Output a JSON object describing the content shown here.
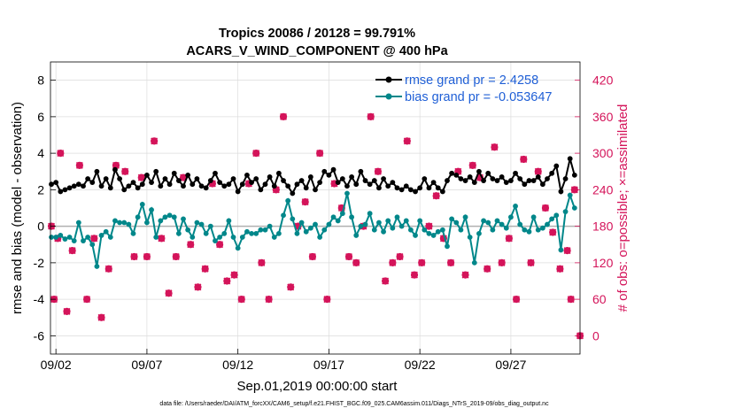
{
  "chart_data": {
    "type": "line",
    "title": "Tropics 20086 / 20128 = 99.791%",
    "subtitle": "ACARS_V_WIND_COMPONENT @ 400 hPa",
    "xlabel": "Sep.01,2019 00:00:00 start",
    "ylabel": "rmse and bias (model - observation)",
    "y2label": "# of obs: o=possible; ×=assimilated",
    "footer": "data file: /Users/raeder/DAI/ATM_forcXX/CAM6_setup/f.e21.FHIST_BGC.f09_025.CAM6assim.011/Diags_NTrS_2019-09/obs_diag_output.nc",
    "xlim": [
      1.7,
      30.8
    ],
    "ylim": [
      -7,
      9
    ],
    "y2lim": [
      -30,
      450
    ],
    "x_ticks": [
      2,
      7,
      12,
      17,
      22,
      27
    ],
    "x_tick_labels": [
      "09/02",
      "09/07",
      "09/12",
      "09/17",
      "09/22",
      "09/27"
    ],
    "y_ticks": [
      -6,
      -4,
      -2,
      0,
      2,
      4,
      6,
      8
    ],
    "y_tick_labels": [
      "-6",
      "-4",
      "-2",
      "0",
      "2",
      "4",
      "6",
      "8"
    ],
    "y2_ticks": [
      0,
      60,
      120,
      180,
      240,
      300,
      360,
      420
    ],
    "y2_tick_labels": [
      "0",
      "60",
      "120",
      "180",
      "240",
      "300",
      "360",
      "420"
    ],
    "grid": true,
    "legend_position": "top-right",
    "colors": {
      "rmse": "#000000",
      "bias": "#00878a",
      "obs": "#d4145a",
      "legend_text": "#1f5fd6",
      "zero_line": "#b0b0b0",
      "grid": "#dcdcdc"
    },
    "series": [
      {
        "name": "rmse",
        "label": "rmse grand pr = 2.4258",
        "x": [
          1.75,
          2,
          2.25,
          2.5,
          2.75,
          3,
          3.25,
          3.5,
          3.75,
          4,
          4.25,
          4.5,
          4.75,
          5,
          5.25,
          5.5,
          5.75,
          6,
          6.25,
          6.5,
          6.75,
          7,
          7.25,
          7.5,
          7.75,
          8,
          8.25,
          8.5,
          8.75,
          9,
          9.25,
          9.5,
          9.75,
          10,
          10.25,
          10.5,
          10.75,
          11,
          11.25,
          11.5,
          11.75,
          12,
          12.25,
          12.5,
          12.75,
          13,
          13.25,
          13.5,
          13.75,
          14,
          14.25,
          14.5,
          14.75,
          15,
          15.25,
          15.5,
          15.75,
          16,
          16.25,
          16.5,
          16.75,
          17,
          17.25,
          17.5,
          17.75,
          18,
          18.25,
          18.5,
          18.75,
          19,
          19.25,
          19.5,
          19.75,
          20,
          20.25,
          20.5,
          20.75,
          21,
          21.25,
          21.5,
          21.75,
          22,
          22.25,
          22.5,
          22.75,
          23,
          23.25,
          23.5,
          23.75,
          24,
          24.25,
          24.5,
          24.75,
          25,
          25.25,
          25.5,
          25.75,
          26,
          26.25,
          26.5,
          26.75,
          27,
          27.25,
          27.5,
          27.75,
          28,
          28.25,
          28.5,
          28.75,
          29,
          29.25,
          29.5,
          29.75,
          30,
          30.25,
          30.5
        ],
        "values": [
          2.3,
          2.4,
          1.9,
          2.0,
          2.1,
          2.2,
          2.3,
          2.2,
          2.6,
          2.4,
          3.0,
          2.2,
          2.6,
          2.1,
          3.1,
          2.6,
          2.0,
          2.2,
          2.4,
          2.1,
          2.3,
          2.8,
          2.4,
          3.0,
          2.2,
          2.6,
          2.3,
          2.9,
          2.5,
          2.2,
          2.8,
          2.3,
          2.6,
          2.2,
          2.1,
          2.5,
          2.9,
          2.4,
          2.2,
          2.3,
          2.6,
          1.9,
          2.3,
          2.8,
          2.4,
          2.6,
          2.0,
          2.3,
          2.7,
          2.2,
          2.9,
          2.5,
          2.2,
          1.8,
          2.3,
          2.5,
          2.1,
          2.7,
          2.0,
          2.4,
          3.0,
          2.8,
          3.1,
          2.4,
          2.6,
          2.2,
          2.7,
          2.3,
          3.0,
          2.5,
          2.3,
          2.5,
          2.1,
          2.6,
          2.2,
          2.4,
          2.1,
          2.0,
          2.2,
          2.0,
          1.9,
          2.1,
          2.6,
          2.1,
          2.4,
          2.1,
          1.9,
          2.5,
          2.9,
          2.8,
          2.6,
          2.5,
          2.7,
          2.4,
          3.0,
          2.5,
          2.9,
          2.6,
          2.5,
          2.7,
          2.4,
          2.5,
          2.9,
          2.6,
          2.3,
          2.5,
          2.5,
          2.7,
          2.3,
          2.6,
          2.9,
          3.3,
          1.9,
          2.6,
          3.7,
          2.8
        ]
      },
      {
        "name": "bias",
        "label": "bias grand pr = -0.053647",
        "x": [
          1.75,
          2,
          2.25,
          2.5,
          2.75,
          3,
          3.25,
          3.5,
          3.75,
          4,
          4.25,
          4.5,
          4.75,
          5,
          5.25,
          5.5,
          5.75,
          6,
          6.25,
          6.5,
          6.75,
          7,
          7.25,
          7.5,
          7.75,
          8,
          8.25,
          8.5,
          8.75,
          9,
          9.25,
          9.5,
          9.75,
          10,
          10.25,
          10.5,
          10.75,
          11,
          11.25,
          11.5,
          11.75,
          12,
          12.25,
          12.5,
          12.75,
          13,
          13.25,
          13.5,
          13.75,
          14,
          14.25,
          14.5,
          14.75,
          15,
          15.25,
          15.5,
          15.75,
          16,
          16.25,
          16.5,
          16.75,
          17,
          17.25,
          17.5,
          17.75,
          18,
          18.25,
          18.5,
          18.75,
          19,
          19.25,
          19.5,
          19.75,
          20,
          20.25,
          20.5,
          20.75,
          21,
          21.25,
          21.5,
          21.75,
          22,
          22.25,
          22.5,
          22.75,
          23,
          23.25,
          23.5,
          23.75,
          24,
          24.25,
          24.5,
          24.75,
          25,
          25.25,
          25.5,
          25.75,
          26,
          26.25,
          26.5,
          26.75,
          27,
          27.25,
          27.5,
          27.75,
          28,
          28.25,
          28.5,
          28.75,
          29,
          29.25,
          29.5,
          29.75,
          30,
          30.25,
          30.5
        ],
        "values": [
          -0.6,
          -0.6,
          -0.5,
          -0.7,
          -0.6,
          -0.8,
          0.2,
          -0.8,
          -0.6,
          -1.0,
          -2.2,
          -0.5,
          -0.3,
          -0.6,
          0.3,
          0.2,
          0.2,
          0.1,
          -0.4,
          0.5,
          1.2,
          0.2,
          0.9,
          -0.6,
          0.3,
          0.5,
          0.6,
          0.5,
          -0.4,
          0.4,
          -0.2,
          -0.6,
          0.2,
          0.1,
          -0.4,
          0.0,
          -0.8,
          -0.6,
          -0.4,
          0.3,
          -0.6,
          -1.2,
          -0.6,
          -0.3,
          -0.4,
          -0.4,
          -0.2,
          -0.2,
          0.0,
          -0.6,
          -0.4,
          0.6,
          1.4,
          0.4,
          -0.4,
          0.2,
          -0.3,
          -0.1,
          0.1,
          -0.6,
          -0.2,
          0.1,
          0.5,
          0.3,
          0.7,
          1.8,
          0.5,
          -0.5,
          0.0,
          0.1,
          0.7,
          -0.2,
          0.2,
          -0.3,
          0.3,
          -0.1,
          0.5,
          0.0,
          0.3,
          -0.2,
          -0.5,
          0.3,
          -0.2,
          -0.4,
          -0.5,
          -0.3,
          -0.2,
          -1.1,
          0.4,
          0.2,
          -0.2,
          0.5,
          -0.6,
          -2.0,
          -0.4,
          0.3,
          0.2,
          -0.2,
          0.3,
          0.1,
          -0.1,
          0.5,
          1.1,
          0.1,
          -0.2,
          -0.3,
          0.5,
          -0.2,
          -0.1,
          0.1,
          0.4,
          0.6,
          -1.3,
          0.8,
          1.7,
          1.0
        ]
      }
    ],
    "obs_possible": {
      "x": [
        1.75,
        1.9,
        2.1,
        2.25,
        2.6,
        2.9,
        3.3,
        3.7,
        4.1,
        4.5,
        4.9,
        5.3,
        5.8,
        6.3,
        6.7,
        7.0,
        7.4,
        7.8,
        8.2,
        8.6,
        9.0,
        9.4,
        9.8,
        10.2,
        10.6,
        11.0,
        11.4,
        11.8,
        12.2,
        12.6,
        13.0,
        13.3,
        13.7,
        14.1,
        14.5,
        14.9,
        15.3,
        15.7,
        16.1,
        16.5,
        16.9,
        17.3,
        17.7,
        18.1,
        18.5,
        18.9,
        19.3,
        19.7,
        20.1,
        20.5,
        20.9,
        21.3,
        21.7,
        22.1,
        22.5,
        22.9,
        23.3,
        23.7,
        24.1,
        24.5,
        24.9,
        25.3,
        25.7,
        26.1,
        26.5,
        26.9,
        27.3,
        27.7,
        28.1,
        28.5,
        28.9,
        29.3,
        29.7,
        30.1,
        30.3,
        30.5,
        30.8
      ],
      "values": [
        180,
        60,
        160,
        300,
        40,
        140,
        280,
        60,
        160,
        30,
        110,
        280,
        270,
        130,
        260,
        130,
        320,
        160,
        70,
        130,
        260,
        150,
        80,
        110,
        250,
        150,
        90,
        100,
        60,
        250,
        300,
        120,
        60,
        240,
        360,
        80,
        180,
        220,
        130,
        300,
        60,
        250,
        210,
        130,
        120,
        180,
        360,
        270,
        90,
        120,
        130,
        320,
        100,
        120,
        180,
        230,
        160,
        120,
        270,
        100,
        280,
        260,
        110,
        310,
        120,
        160,
        60,
        290,
        120,
        270,
        210,
        170,
        110,
        140,
        60,
        240,
        0
      ]
    },
    "obs_assimilated": {
      "x": [
        1.75,
        1.9,
        2.1,
        2.25,
        2.6,
        2.9,
        3.3,
        3.7,
        4.1,
        4.5,
        4.9,
        5.3,
        5.8,
        6.3,
        6.7,
        7.0,
        7.4,
        7.8,
        8.2,
        8.6,
        9.0,
        9.4,
        9.8,
        10.2,
        10.6,
        11.0,
        11.4,
        11.8,
        12.2,
        12.6,
        13.0,
        13.3,
        13.7,
        14.1,
        14.5,
        14.9,
        15.3,
        15.7,
        16.1,
        16.5,
        16.9,
        17.3,
        17.7,
        18.1,
        18.5,
        18.9,
        19.3,
        19.7,
        20.1,
        20.5,
        20.9,
        21.3,
        21.7,
        22.1,
        22.5,
        22.9,
        23.3,
        23.7,
        24.1,
        24.5,
        24.9,
        25.3,
        25.7,
        26.1,
        26.5,
        26.9,
        27.3,
        27.7,
        28.1,
        28.5,
        28.9,
        29.3,
        29.7,
        30.1,
        30.3,
        30.5,
        30.8
      ],
      "values": [
        180,
        60,
        160,
        300,
        40,
        140,
        280,
        60,
        160,
        30,
        110,
        280,
        270,
        130,
        260,
        130,
        320,
        160,
        70,
        130,
        260,
        150,
        80,
        110,
        250,
        150,
        90,
        100,
        60,
        250,
        300,
        120,
        60,
        240,
        360,
        80,
        180,
        220,
        130,
        300,
        60,
        250,
        210,
        130,
        120,
        180,
        360,
        270,
        90,
        120,
        130,
        320,
        100,
        120,
        180,
        230,
        160,
        120,
        270,
        100,
        280,
        260,
        110,
        310,
        120,
        160,
        60,
        290,
        120,
        270,
        210,
        170,
        110,
        140,
        60,
        240,
        0
      ]
    }
  }
}
